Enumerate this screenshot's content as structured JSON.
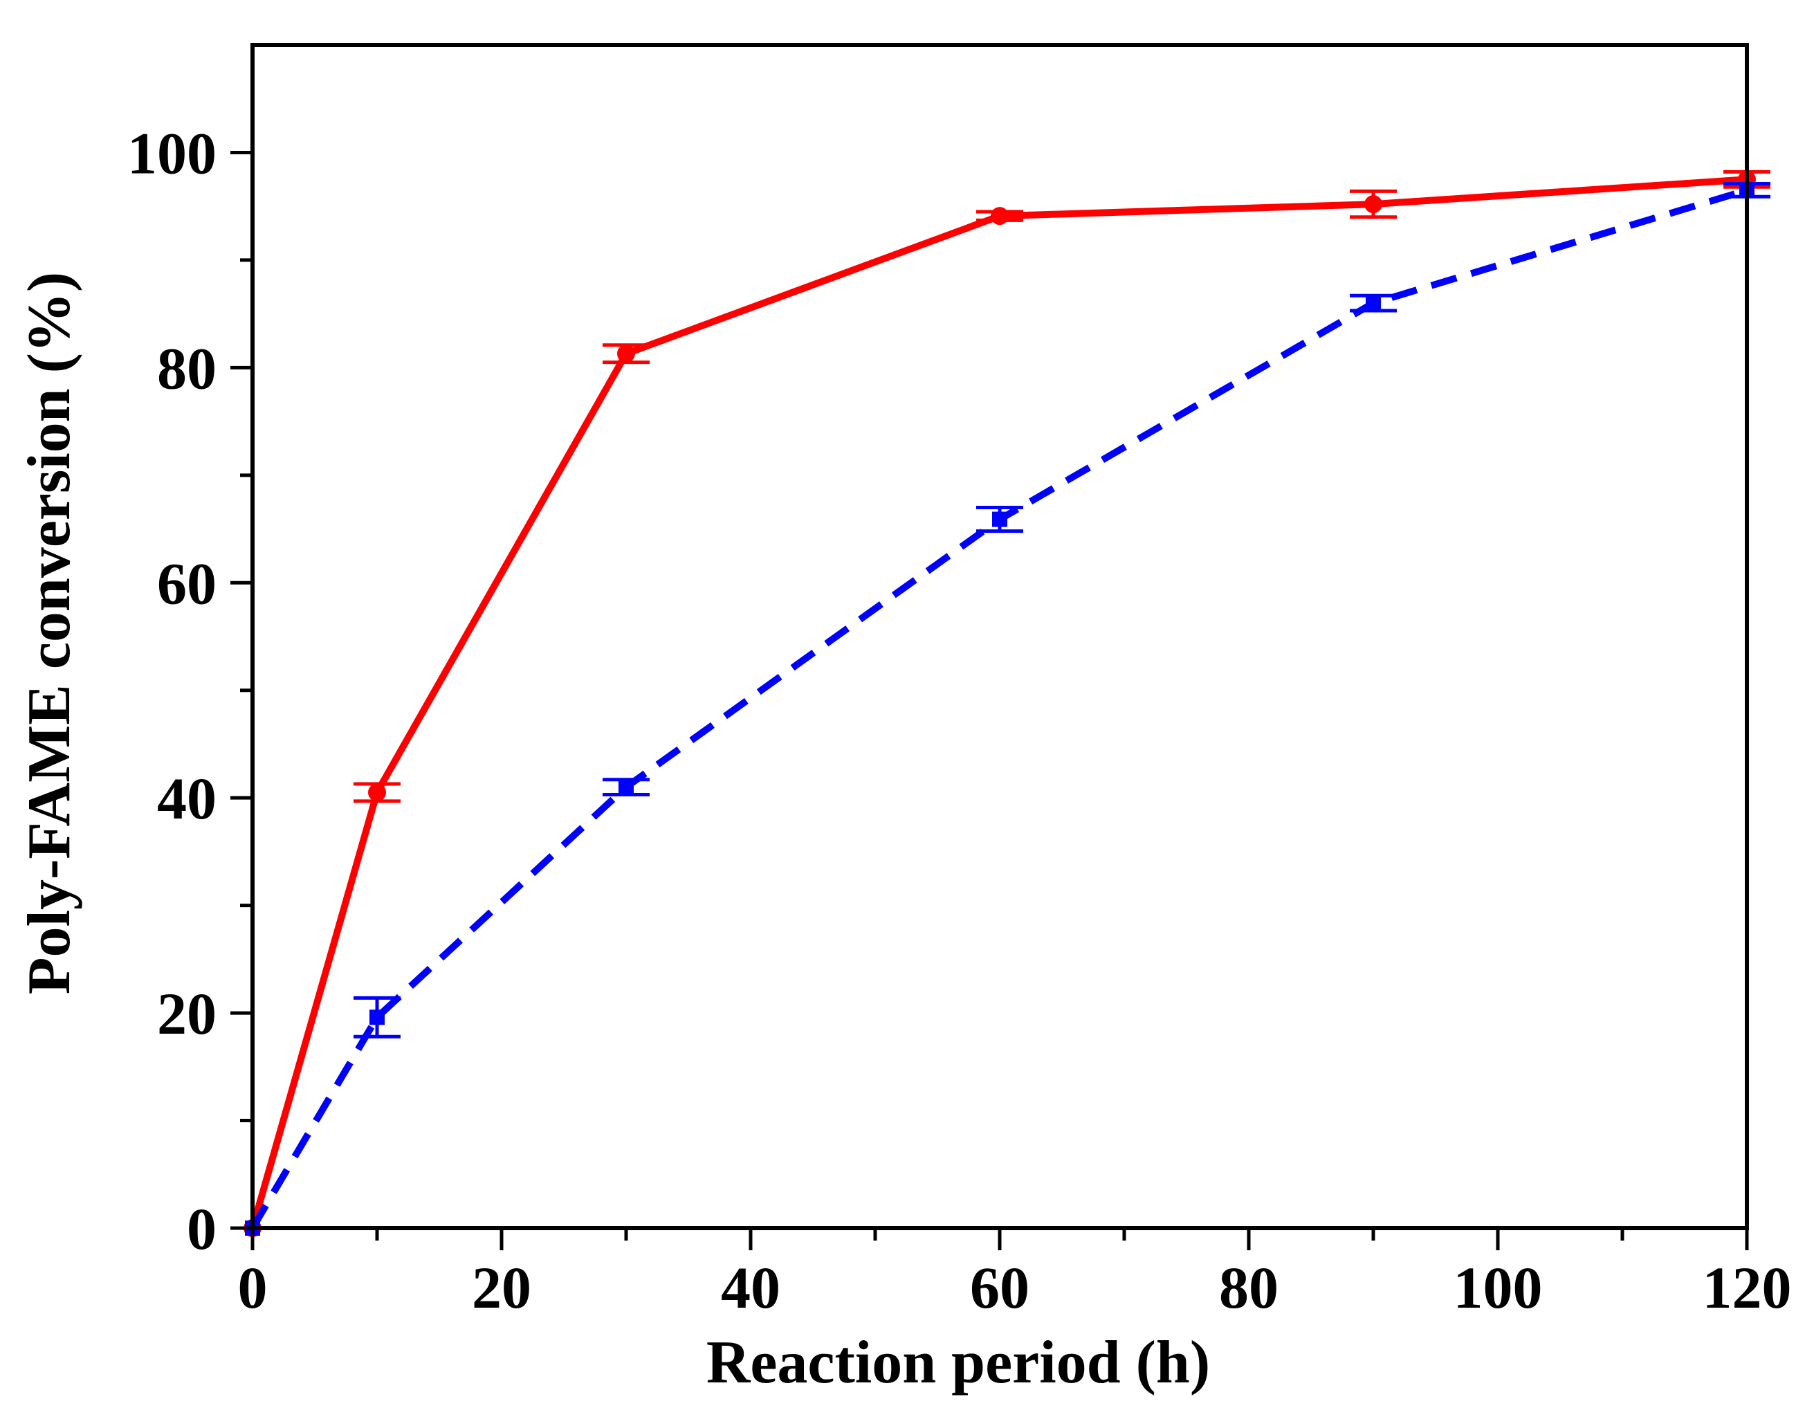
{
  "chart_data": {
    "type": "line",
    "title": "",
    "xlabel": "Reaction period (h)",
    "ylabel": "Poly-FAME conversion (%)",
    "xlim": [
      0,
      120
    ],
    "ylim": [
      0,
      110
    ],
    "xticks": [
      0,
      20,
      40,
      60,
      80,
      100,
      120
    ],
    "yticks": [
      0,
      20,
      40,
      60,
      80,
      100
    ],
    "xtick_labels": [
      "0",
      "20",
      "40",
      "60",
      "80",
      "100",
      "120"
    ],
    "ytick_labels": [
      "0",
      "20",
      "40",
      "60",
      "80",
      "100"
    ],
    "grid": false,
    "legend": false,
    "series": [
      {
        "name": "series-solid-red",
        "color": "#ff0000",
        "line_style": "solid",
        "marker": "circle",
        "x": [
          0,
          10,
          30,
          60,
          90,
          120
        ],
        "values": [
          0,
          40.5,
          81.3,
          94.1,
          95.2,
          97.5
        ],
        "errors": [
          0,
          0.8,
          0.8,
          0.4,
          1.2,
          0.7
        ]
      },
      {
        "name": "series-dashed-blue",
        "color": "#0000ff",
        "line_style": "dashed",
        "marker": "square",
        "x": [
          0,
          10,
          30,
          60,
          90,
          120
        ],
        "values": [
          0,
          19.6,
          41.0,
          65.9,
          86.0,
          96.5
        ],
        "errors": [
          0,
          1.8,
          0.7,
          1.1,
          0.7,
          0.6
        ]
      }
    ]
  }
}
